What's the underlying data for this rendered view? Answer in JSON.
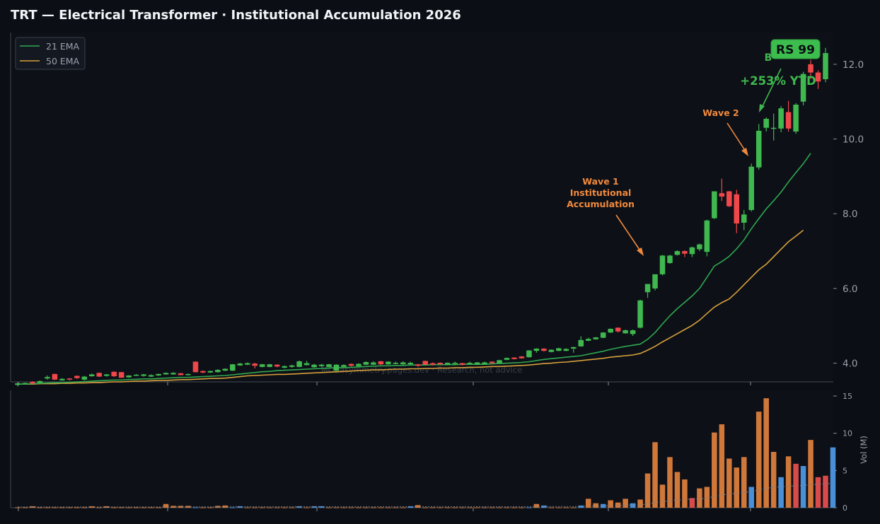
{
  "title": "TRT — Electrical Transformer · Institutional Accumulation 2026",
  "watermark": "MOEasymmetry.pages.dev · Research, not advice",
  "colors": {
    "background": "#0b0e14",
    "panel": "#0d1017",
    "up": "#3fb84f",
    "down": "#f0474a",
    "ema21": "#2fa84f",
    "ema50": "#d6a03c",
    "annotation": "#f28a3c",
    "vol_orange": "#d0773a",
    "vol_blue": "#4a90d9",
    "vol_red": "#d94a4a",
    "grid_text": "#9aa0ab"
  },
  "annotations": {
    "rs_badge": "RS 99",
    "ytd": "+253% YTD",
    "partial_label": "B",
    "wave1": [
      "Wave 1",
      "Institutional",
      "Accumulation"
    ],
    "wave2": "Wave 2"
  },
  "chart_data": [
    {
      "type": "candlestick",
      "title": "TRT — Electrical Transformer · Institutional Accumulation 2026",
      "ylim": [
        3.5,
        12.85
      ],
      "yticks": [
        4.0,
        6.0,
        8.0,
        10.0,
        12.0
      ],
      "ytick_labels": [
        "4.0",
        "6.0",
        "8.0",
        "10.0",
        "12.0"
      ],
      "legend": {
        "placement": "top-left",
        "entries": [
          "21 EMA",
          "50 EMA"
        ]
      },
      "grid": false,
      "ohlc": [
        [
          3.42,
          3.48,
          3.38,
          3.46
        ],
        [
          3.45,
          3.48,
          3.43,
          3.47
        ],
        [
          3.5,
          3.52,
          3.44,
          3.46
        ],
        [
          3.47,
          3.54,
          3.46,
          3.52
        ],
        [
          3.59,
          3.67,
          3.56,
          3.63
        ],
        [
          3.71,
          3.72,
          3.55,
          3.56
        ],
        [
          3.54,
          3.6,
          3.53,
          3.58
        ],
        [
          3.59,
          3.6,
          3.54,
          3.56
        ],
        [
          3.66,
          3.67,
          3.58,
          3.6
        ],
        [
          3.56,
          3.66,
          3.54,
          3.64
        ],
        [
          3.65,
          3.72,
          3.64,
          3.7
        ],
        [
          3.74,
          3.75,
          3.63,
          3.64
        ],
        [
          3.66,
          3.71,
          3.64,
          3.7
        ],
        [
          3.77,
          3.78,
          3.63,
          3.65
        ],
        [
          3.76,
          3.77,
          3.61,
          3.61
        ],
        [
          3.62,
          3.68,
          3.61,
          3.67
        ],
        [
          3.67,
          3.71,
          3.66,
          3.69
        ],
        [
          3.66,
          3.71,
          3.64,
          3.7
        ],
        [
          3.64,
          3.7,
          3.63,
          3.68
        ],
        [
          3.67,
          3.72,
          3.66,
          3.71
        ],
        [
          3.7,
          3.75,
          3.69,
          3.74
        ],
        [
          3.7,
          3.76,
          3.69,
          3.74
        ],
        [
          3.73,
          3.74,
          3.68,
          3.68
        ],
        [
          3.68,
          3.72,
          3.67,
          3.71
        ],
        [
          4.04,
          4.05,
          3.75,
          3.76
        ],
        [
          3.79,
          3.8,
          3.73,
          3.75
        ],
        [
          3.75,
          3.8,
          3.74,
          3.79
        ],
        [
          3.76,
          3.84,
          3.75,
          3.82
        ],
        [
          3.8,
          3.86,
          3.79,
          3.85
        ],
        [
          3.8,
          3.98,
          3.79,
          3.97
        ],
        [
          3.94,
          4.01,
          3.93,
          3.99
        ],
        [
          3.96,
          4.02,
          3.95,
          4.0
        ],
        [
          3.99,
          4.01,
          3.86,
          3.93
        ],
        [
          3.9,
          3.98,
          3.89,
          3.97
        ],
        [
          3.9,
          3.98,
          3.89,
          3.97
        ],
        [
          3.96,
          3.97,
          3.89,
          3.91
        ],
        [
          3.88,
          3.94,
          3.86,
          3.92
        ],
        [
          3.9,
          3.96,
          3.88,
          3.94
        ],
        [
          3.9,
          4.07,
          3.89,
          4.05
        ],
        [
          3.95,
          4.06,
          3.94,
          4.0
        ],
        [
          3.89,
          3.98,
          3.88,
          3.96
        ],
        [
          3.92,
          3.98,
          3.9,
          3.96
        ],
        [
          3.9,
          3.98,
          3.89,
          3.97
        ],
        [
          3.8,
          3.97,
          3.79,
          3.96
        ],
        [
          3.9,
          3.97,
          3.89,
          3.95
        ],
        [
          3.98,
          3.99,
          3.91,
          3.93
        ],
        [
          3.92,
          4.0,
          3.91,
          3.98
        ],
        [
          3.96,
          4.05,
          3.95,
          4.03
        ],
        [
          3.96,
          4.05,
          3.95,
          4.02
        ],
        [
          4.05,
          4.06,
          3.95,
          3.97
        ],
        [
          3.97,
          4.05,
          3.96,
          4.04
        ],
        [
          3.98,
          4.04,
          3.97,
          4.01
        ],
        [
          3.97,
          4.05,
          3.96,
          4.02
        ],
        [
          3.97,
          4.04,
          3.96,
          4.01
        ],
        [
          3.97,
          3.98,
          3.91,
          3.93
        ],
        [
          4.06,
          4.07,
          3.95,
          3.96
        ],
        [
          4.0,
          4.02,
          3.94,
          3.96
        ],
        [
          4.01,
          4.02,
          3.96,
          3.97
        ],
        [
          3.96,
          4.02,
          3.95,
          4.01
        ],
        [
          3.98,
          4.04,
          3.97,
          4.01
        ],
        [
          4.0,
          4.01,
          3.94,
          3.96
        ],
        [
          3.98,
          4.04,
          3.97,
          4.01
        ],
        [
          3.96,
          4.03,
          3.95,
          4.02
        ],
        [
          3.97,
          4.04,
          3.96,
          4.02
        ],
        [
          4.04,
          4.05,
          3.99,
          4.0
        ],
        [
          4.0,
          4.09,
          3.99,
          4.08
        ],
        [
          4.09,
          4.15,
          4.08,
          4.14
        ],
        [
          4.15,
          4.16,
          4.1,
          4.11
        ],
        [
          4.18,
          4.19,
          4.12,
          4.13
        ],
        [
          4.16,
          4.35,
          4.15,
          4.34
        ],
        [
          4.33,
          4.4,
          4.28,
          4.39
        ],
        [
          4.39,
          4.4,
          4.31,
          4.33
        ],
        [
          4.3,
          4.37,
          4.29,
          4.36
        ],
        [
          4.33,
          4.41,
          4.32,
          4.4
        ],
        [
          4.33,
          4.4,
          4.32,
          4.38
        ],
        [
          4.39,
          4.44,
          4.28,
          4.43
        ],
        [
          4.45,
          4.72,
          4.44,
          4.62
        ],
        [
          4.6,
          4.68,
          4.59,
          4.65
        ],
        [
          4.64,
          4.7,
          4.63,
          4.69
        ],
        [
          4.68,
          4.83,
          4.67,
          4.82
        ],
        [
          4.82,
          4.93,
          4.81,
          4.92
        ],
        [
          4.95,
          4.96,
          4.82,
          4.85
        ],
        [
          4.8,
          4.9,
          4.79,
          4.88
        ],
        [
          4.78,
          4.9,
          4.73,
          4.88
        ],
        [
          4.95,
          5.7,
          4.93,
          5.68
        ],
        [
          5.9,
          6.1,
          5.75,
          6.12
        ],
        [
          6.0,
          6.3,
          5.95,
          6.38
        ],
        [
          6.38,
          6.9,
          6.35,
          6.88
        ],
        [
          6.68,
          6.9,
          6.66,
          6.88
        ],
        [
          6.9,
          7.02,
          6.88,
          7.0
        ],
        [
          7.0,
          7.02,
          6.84,
          6.93
        ],
        [
          6.92,
          7.12,
          6.84,
          7.1
        ],
        [
          7.05,
          7.2,
          7.0,
          7.18
        ],
        [
          6.98,
          7.84,
          6.86,
          7.82
        ],
        [
          7.88,
          8.6,
          7.86,
          8.6
        ],
        [
          8.55,
          8.94,
          8.34,
          8.46
        ],
        [
          8.6,
          8.61,
          8.18,
          8.2
        ],
        [
          8.52,
          8.64,
          7.48,
          7.74
        ],
        [
          7.76,
          8.1,
          7.56,
          7.98
        ],
        [
          8.1,
          9.34,
          8.06,
          9.26
        ],
        [
          9.24,
          10.4,
          9.18,
          10.22
        ],
        [
          10.3,
          10.58,
          10.2,
          10.54
        ],
        [
          10.3,
          10.68,
          9.96,
          10.3
        ],
        [
          10.28,
          10.88,
          10.18,
          10.82
        ],
        [
          10.72,
          11.02,
          10.2,
          10.28
        ],
        [
          10.2,
          10.96,
          10.14,
          10.92
        ],
        [
          11.0,
          11.8,
          10.9,
          11.74
        ],
        [
          12.0,
          12.12,
          11.6,
          11.78
        ],
        [
          11.78,
          11.84,
          11.34,
          11.54
        ],
        [
          11.6,
          12.44,
          11.52,
          12.3
        ]
      ],
      "ema21": [
        3.44,
        3.44,
        3.45,
        3.46,
        3.47,
        3.48,
        3.48,
        3.49,
        3.5,
        3.51,
        3.52,
        3.53,
        3.54,
        3.55,
        3.55,
        3.56,
        3.57,
        3.58,
        3.58,
        3.59,
        3.6,
        3.61,
        3.62,
        3.62,
        3.63,
        3.64,
        3.65,
        3.66,
        3.67,
        3.69,
        3.71,
        3.73,
        3.75,
        3.77,
        3.78,
        3.8,
        3.81,
        3.82,
        3.83,
        3.84,
        3.85,
        3.86,
        3.87,
        3.88,
        3.88,
        3.89,
        3.9,
        3.91,
        3.92,
        3.93,
        3.93,
        3.94,
        3.94,
        3.95,
        3.95,
        3.95,
        3.96,
        3.96,
        3.96,
        3.96,
        3.97,
        3.97,
        3.97,
        3.97,
        3.98,
        3.99,
        4.0,
        4.01,
        4.02,
        4.04,
        4.07,
        4.1,
        4.12,
        4.14,
        4.16,
        4.18,
        4.2,
        4.24,
        4.28,
        4.32,
        4.37,
        4.41,
        4.45,
        4.48,
        4.51,
        4.64,
        4.82,
        5.05,
        5.27,
        5.46,
        5.63,
        5.8,
        6.0,
        6.3,
        6.6,
        6.72,
        6.86,
        7.06,
        7.3,
        7.6,
        7.87,
        8.13,
        8.35,
        8.58,
        8.85,
        9.1,
        9.34,
        9.62
      ],
      "ema50": [
        3.44,
        3.44,
        3.44,
        3.45,
        3.45,
        3.45,
        3.46,
        3.46,
        3.47,
        3.47,
        3.48,
        3.48,
        3.49,
        3.5,
        3.5,
        3.51,
        3.52,
        3.52,
        3.53,
        3.54,
        3.54,
        3.55,
        3.56,
        3.56,
        3.57,
        3.58,
        3.59,
        3.59,
        3.6,
        3.62,
        3.64,
        3.66,
        3.67,
        3.68,
        3.69,
        3.7,
        3.7,
        3.71,
        3.72,
        3.73,
        3.74,
        3.75,
        3.76,
        3.77,
        3.78,
        3.79,
        3.8,
        3.81,
        3.82,
        3.82,
        3.83,
        3.84,
        3.84,
        3.85,
        3.85,
        3.86,
        3.86,
        3.87,
        3.87,
        3.88,
        3.88,
        3.89,
        3.89,
        3.9,
        3.91,
        3.91,
        3.92,
        3.93,
        3.94,
        3.95,
        3.97,
        3.99,
        4.0,
        4.02,
        4.03,
        4.05,
        4.07,
        4.09,
        4.11,
        4.13,
        4.16,
        4.18,
        4.2,
        4.22,
        4.26,
        4.35,
        4.45,
        4.57,
        4.68,
        4.79,
        4.9,
        5.01,
        5.15,
        5.33,
        5.5,
        5.62,
        5.72,
        5.9,
        6.1,
        6.3,
        6.5,
        6.65,
        6.85,
        7.05,
        7.25,
        7.4,
        7.56
      ]
    },
    {
      "type": "bar",
      "ylabel": "Vol (M)",
      "ylim": [
        0,
        15
      ],
      "yticks": [
        0,
        5,
        10,
        15
      ],
      "ytick_labels": [
        "0",
        "5",
        "10",
        "15"
      ],
      "volume": [
        0.05,
        0.05,
        0.2,
        0.05,
        0.05,
        0.05,
        0.05,
        0.05,
        0.05,
        0.05,
        0.2,
        0.05,
        0.2,
        0.05,
        0.05,
        0.05,
        0.05,
        0.05,
        0.05,
        0.05,
        0.5,
        0.25,
        0.25,
        0.25,
        0.05,
        0.05,
        0.05,
        0.25,
        0.3,
        0.05,
        0.2,
        0.05,
        0.05,
        0.05,
        0.05,
        0.05,
        0.05,
        0.05,
        0.2,
        0.05,
        0.2,
        0.2,
        0.05,
        0.05,
        0.05,
        0.05,
        0.05,
        0.05,
        0.05,
        0.05,
        0.05,
        0.05,
        0.05,
        0.2,
        0.35,
        0.05,
        0.05,
        0.05,
        0.05,
        0.05,
        0.05,
        0.05,
        0.05,
        0.05,
        0.05,
        0.05,
        0.05,
        0.05,
        0.05,
        0.05,
        0.5,
        0.3,
        0.05,
        0.05,
        0.05,
        0.05,
        0.3,
        1.2,
        0.6,
        0.5,
        1.0,
        0.7,
        1.2,
        0.6,
        1.1,
        4.6,
        8.8,
        3.1,
        6.8,
        4.8,
        3.8,
        1.3,
        2.6,
        2.8,
        10.1,
        11.2,
        6.6,
        5.4,
        6.8,
        2.8,
        12.9,
        14.7,
        7.5,
        4.1,
        6.9,
        5.9,
        5.6,
        9.1,
        4.1,
        4.3,
        8.1
      ],
      "volume_colors": [
        "o",
        "o",
        "o",
        "o",
        "o",
        "o",
        "o",
        "o",
        "o",
        "o",
        "o",
        "o",
        "o",
        "o",
        "o",
        "o",
        "o",
        "o",
        "o",
        "o",
        "o",
        "o",
        "o",
        "o",
        "b",
        "o",
        "o",
        "o",
        "o",
        "b",
        "b",
        "o",
        "o",
        "o",
        "o",
        "o",
        "o",
        "o",
        "b",
        "o",
        "b",
        "b",
        "o",
        "o",
        "o",
        "o",
        "o",
        "o",
        "o",
        "o",
        "o",
        "o",
        "o",
        "b",
        "o",
        "o",
        "o",
        "o",
        "o",
        "o",
        "o",
        "o",
        "o",
        "o",
        "o",
        "o",
        "o",
        "o",
        "o",
        "b",
        "o",
        "b",
        "o",
        "o",
        "o",
        "o",
        "b",
        "o",
        "o",
        "b",
        "o",
        "o",
        "o",
        "b",
        "o",
        "o",
        "o",
        "o",
        "o",
        "o",
        "o",
        "r",
        "o",
        "o",
        "o",
        "o",
        "o",
        "o",
        "o",
        "b",
        "o",
        "o",
        "o",
        "b",
        "o",
        "r",
        "b",
        "o",
        "r",
        "r",
        "b"
      ],
      "avg_volume": [
        0.1,
        0.1,
        0.1,
        0.1,
        0.1,
        0.1,
        0.1,
        0.1,
        0.1,
        0.1,
        0.1,
        0.1,
        0.1,
        0.1,
        0.1,
        0.1,
        0.1,
        0.1,
        0.1,
        0.1,
        0.12,
        0.12,
        0.12,
        0.13,
        0.13,
        0.13,
        0.13,
        0.13,
        0.14,
        0.14,
        0.14,
        0.14,
        0.14,
        0.14,
        0.14,
        0.14,
        0.14,
        0.14,
        0.14,
        0.14,
        0.14,
        0.14,
        0.14,
        0.14,
        0.14,
        0.14,
        0.14,
        0.14,
        0.14,
        0.14,
        0.14,
        0.14,
        0.14,
        0.14,
        0.14,
        0.14,
        0.14,
        0.14,
        0.14,
        0.14,
        0.14,
        0.14,
        0.14,
        0.14,
        0.14,
        0.14,
        0.14,
        0.14,
        0.14,
        0.14,
        0.16,
        0.16,
        0.16,
        0.16,
        0.16,
        0.16,
        0.18,
        0.22,
        0.24,
        0.25,
        0.28,
        0.3,
        0.33,
        0.35,
        0.38,
        0.5,
        0.7,
        0.8,
        0.95,
        1.05,
        1.1,
        1.15,
        1.2,
        1.3,
        1.5,
        1.7,
        1.85,
        1.95,
        2.1,
        2.15,
        2.4,
        2.6,
        2.75,
        2.8,
        2.9,
        2.95,
        3.0,
        3.1,
        3.15,
        3.2,
        3.3
      ]
    }
  ]
}
